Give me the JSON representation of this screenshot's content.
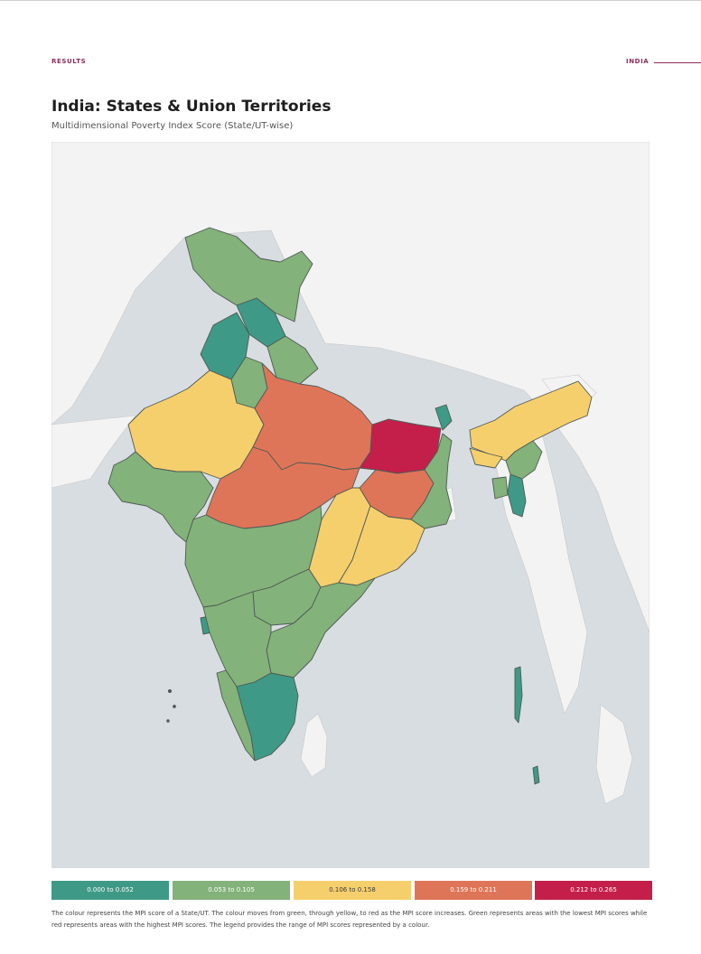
{
  "header": {
    "section_left": "RESULTS",
    "section_right": "INDIA"
  },
  "title": "India: States & Union Territories",
  "subtitle": "Multidimensional Poverty Index Score (State/UT-wise)",
  "legend": [
    {
      "label": "0.000 to 0.052",
      "color": "#3e9a86"
    },
    {
      "label": "0.053 to 0.105",
      "color": "#83b27a"
    },
    {
      "label": "0.106 to 0.158",
      "color": "#f6cf6d"
    },
    {
      "label": "0.159 to 0.211",
      "color": "#df7558"
    },
    {
      "label": "0.212 to 0.265",
      "color": "#c41f4a"
    }
  ],
  "caption": "The colour represents the MPI score of a State/UT. The colour moves from green, through yellow, to red as the MPI score increases. Green represents areas with the lowest MPI scores while red represents areas with the highest MPI scores. The legend provides the range of MPI scores represented by a colour.",
  "map_colors": {
    "sea": "#d8dde2",
    "foreign_land": "#f3f3f3",
    "state_border": "#4f5a55"
  }
}
